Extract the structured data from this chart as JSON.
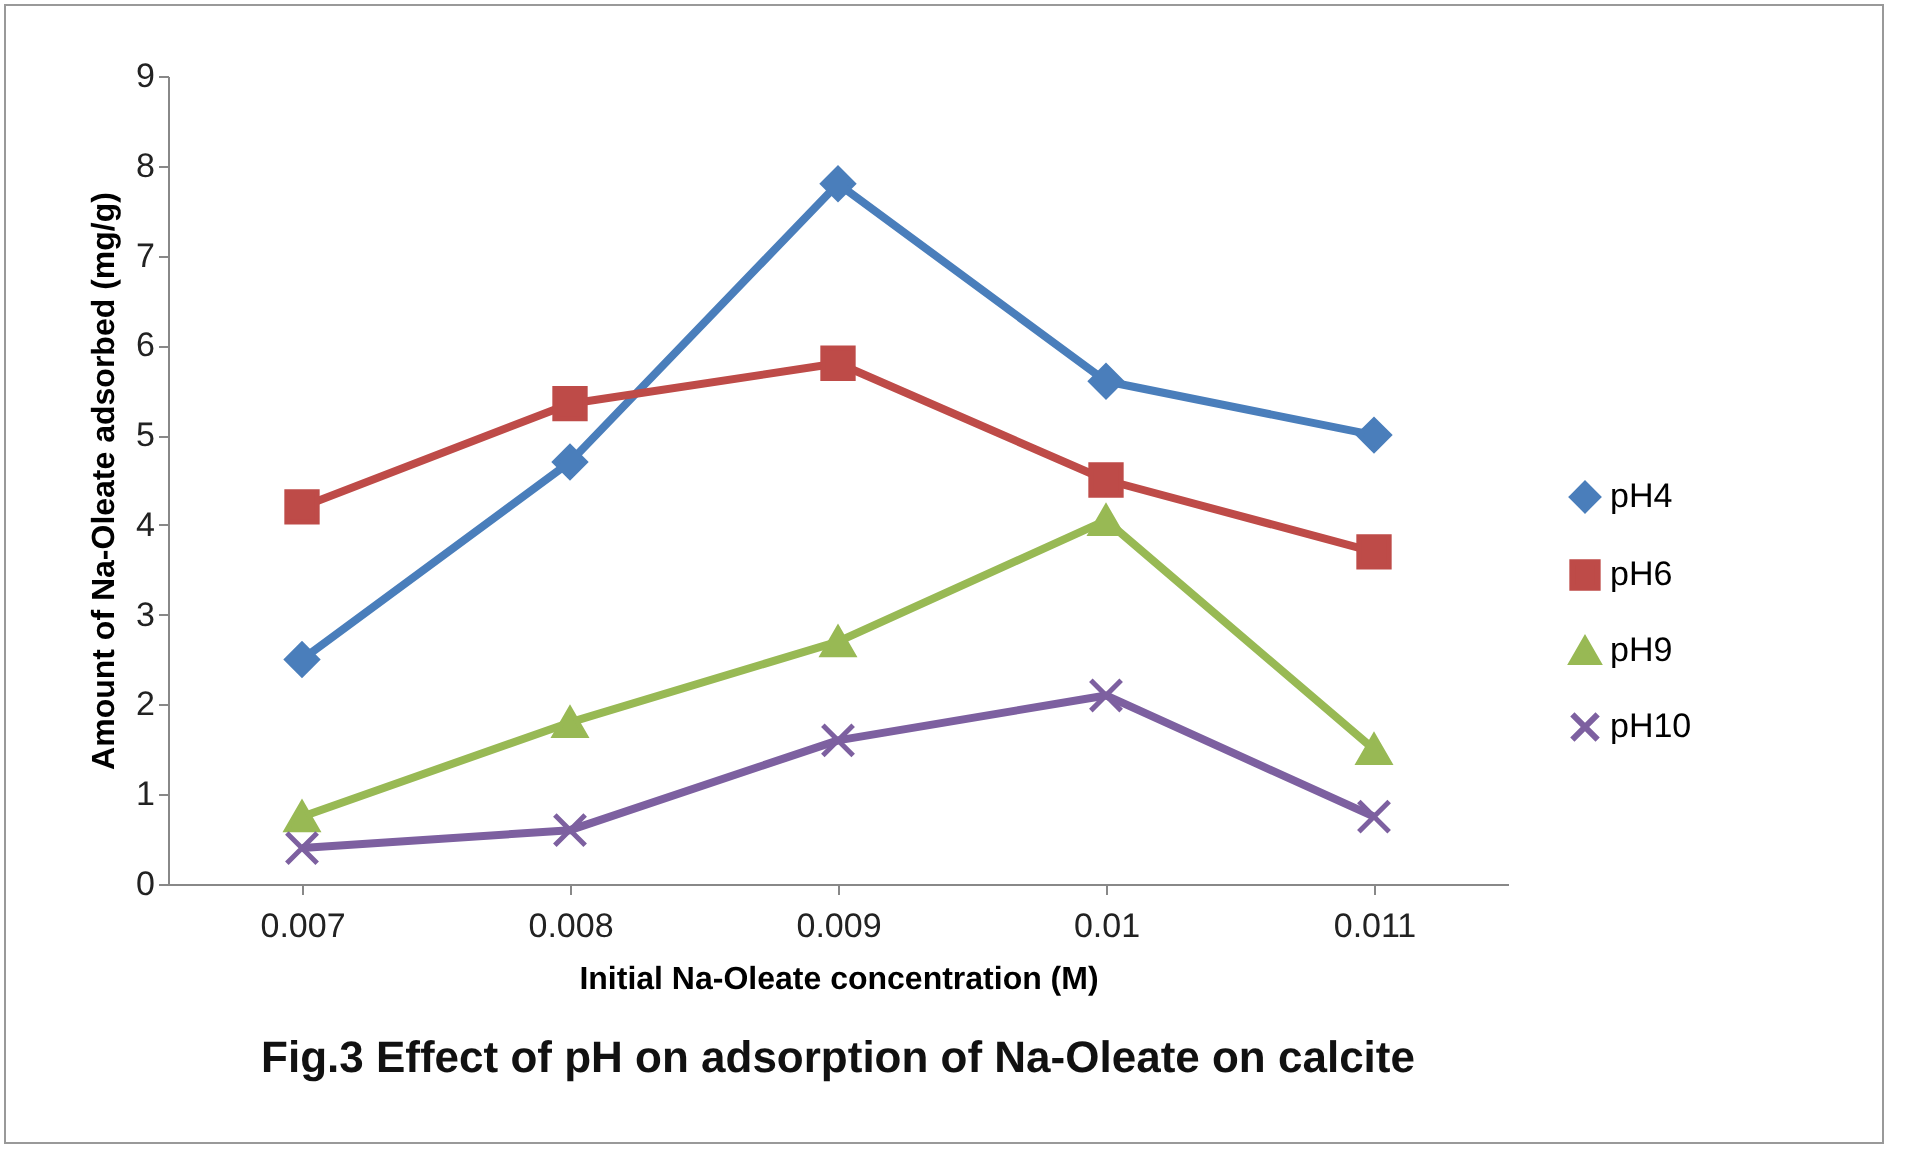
{
  "chart_data": {
    "type": "line",
    "title": "Fig.3 Effect of pH on adsorption of Na-Oleate on calcite",
    "xlabel": "Initial Na-Oleate concentration (M)",
    "ylabel": "Amount of Na-Oleate adsorbed (mg/g)",
    "categories": [
      "0.007",
      "0.008",
      "0.009",
      "0.01",
      "0.011"
    ],
    "series": [
      {
        "name": "pH4",
        "color": "#4a7ebb",
        "marker": "diamond",
        "values": [
          2.5,
          4.7,
          7.8,
          5.6,
          5.0
        ]
      },
      {
        "name": "pH6",
        "color": "#be4b48",
        "marker": "square",
        "values": [
          4.2,
          5.35,
          5.8,
          4.5,
          3.7
        ]
      },
      {
        "name": "pH9",
        "color": "#98b954",
        "marker": "triangle",
        "values": [
          0.75,
          1.8,
          2.7,
          4.05,
          1.5
        ]
      },
      {
        "name": "pH10",
        "color": "#7d60a0",
        "marker": "cross",
        "values": [
          0.4,
          0.6,
          1.6,
          2.1,
          0.75
        ]
      }
    ],
    "ylim": [
      0,
      9
    ],
    "yticks": [
      0,
      1,
      2,
      3,
      4,
      5,
      6,
      7,
      8,
      9
    ],
    "grid": false,
    "legend": "right"
  }
}
